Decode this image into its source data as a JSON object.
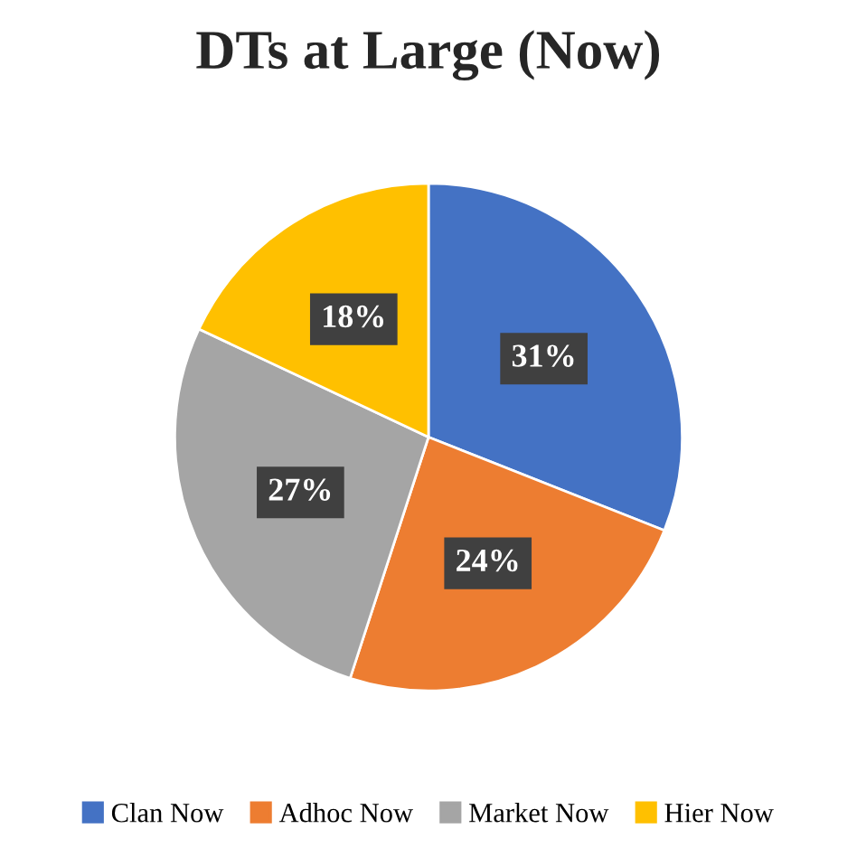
{
  "chart_data": {
    "type": "pie",
    "title": "DTs at Large (Now)",
    "categories": [
      "Clan Now",
      "Adhoc Now",
      "Market Now",
      "Hier Now"
    ],
    "values": [
      31,
      24,
      27,
      18
    ],
    "value_labels": [
      "31%",
      "24%",
      "27%",
      "18%"
    ],
    "colors": [
      "#4472c4",
      "#ed7d31",
      "#a5a5a5",
      "#ffc000"
    ],
    "legend": "bottom"
  }
}
